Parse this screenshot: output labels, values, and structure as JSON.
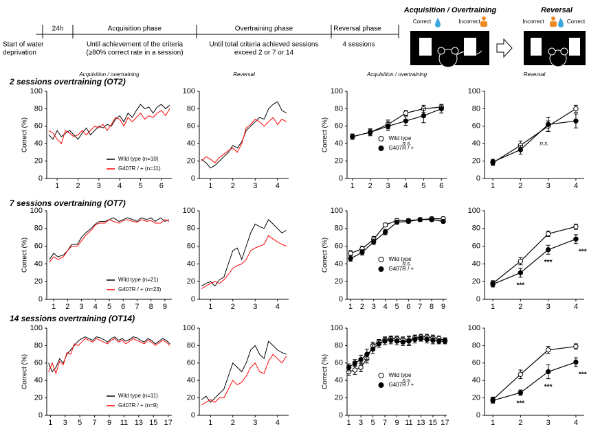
{
  "timeline": {
    "phases": [
      "24h",
      "Acquisition phase",
      "Overtraining phase",
      "Reversal phase"
    ],
    "notes": [
      [
        "Start of water",
        "deprivation"
      ],
      [
        "Until achievement of the criteria",
        "(≥80% correct rate in a session)"
      ],
      [
        "Until total criteria achieved sessions",
        "exceed 2 or 7 or 14"
      ],
      [
        "4 sessions"
      ]
    ]
  },
  "schematic": {
    "acquisition": {
      "title": "Acquisition / Overtraining",
      "correct": "Correct",
      "incorrect": "Incorrect"
    },
    "reversal": {
      "title": "Reversal",
      "incorrect": "Incorrect",
      "correct": "Correct"
    }
  },
  "row_titles": [
    "2 sessions overtraining (OT2)",
    "7 sessions overtraining (OT7)",
    "14 sessions overtraining (OT14)"
  ],
  "chart_data": [
    {
      "type": "line",
      "title": "Acquisition / overtraining",
      "ylabel": "Correct (%)",
      "legend": "lower right",
      "x": [
        0.6,
        0.8,
        1,
        1.2,
        1.4,
        1.6,
        1.8,
        2,
        2.2,
        2.4,
        2.6,
        2.8,
        3,
        3.2,
        3.4,
        3.6,
        3.8,
        4,
        4.2,
        4.4,
        4.6,
        4.8,
        5,
        5.2,
        5.4,
        5.6,
        5.8,
        6,
        6.2,
        6.4
      ],
      "xlim": [
        0.5,
        6.5
      ],
      "xticks": [
        1,
        2,
        3,
        4,
        5,
        6
      ],
      "ylim": [
        0,
        100
      ],
      "yticks": [
        0,
        20,
        40,
        60,
        80,
        100
      ],
      "series": [
        {
          "name": "Wild type (n=10)",
          "color": "#000000",
          "values": [
            50,
            45,
            55,
            48,
            52,
            55,
            50,
            45,
            52,
            58,
            50,
            55,
            60,
            58,
            62,
            60,
            68,
            72,
            65,
            75,
            70,
            78,
            85,
            80,
            82,
            75,
            82,
            85,
            80,
            84
          ]
        },
        {
          "name": "G407R / + (n=11)",
          "color": "#ff0000",
          "values": [
            55,
            52,
            45,
            40,
            55,
            52,
            48,
            50,
            55,
            50,
            55,
            60,
            58,
            62,
            55,
            62,
            70,
            68,
            60,
            70,
            65,
            70,
            75,
            68,
            72,
            70,
            75,
            78,
            72,
            80
          ]
        }
      ]
    },
    {
      "type": "line",
      "title": "Reversal",
      "x": [
        0.6,
        0.8,
        1,
        1.2,
        1.4,
        1.6,
        1.8,
        2,
        2.2,
        2.4,
        2.6,
        2.8,
        3,
        3.2,
        3.4,
        3.6,
        3.8,
        4,
        4.2,
        4.4
      ],
      "xlim": [
        0.5,
        4.5
      ],
      "xticks": [
        1,
        2,
        3,
        4
      ],
      "ylim": [
        0,
        100
      ],
      "yticks": [
        0,
        20,
        40,
        60,
        80,
        100
      ],
      "series": [
        {
          "color": "#000000",
          "values": [
            22,
            18,
            12,
            15,
            20,
            25,
            30,
            38,
            35,
            42,
            55,
            60,
            65,
            70,
            68,
            80,
            85,
            88,
            78,
            75
          ]
        },
        {
          "color": "#ff0000",
          "values": [
            20,
            25,
            22,
            18,
            24,
            28,
            32,
            35,
            30,
            40,
            58,
            62,
            68,
            65,
            60,
            65,
            70,
            62,
            68,
            65
          ]
        }
      ]
    },
    {
      "type": "line",
      "title": "Acquisition / overtraining",
      "ylabel": "Correct (%)",
      "legend": "lower center",
      "annotations": [
        "n.s."
      ],
      "x": [
        1,
        2,
        3,
        4,
        5,
        6
      ],
      "xlim": [
        0.7,
        6.3
      ],
      "xticks": [
        1,
        2,
        3,
        4,
        5,
        6
      ],
      "ylim": [
        0,
        100
      ],
      "yticks": [
        0,
        20,
        40,
        60,
        80,
        100
      ],
      "series": [
        {
          "name": "Wild type",
          "color": "#000000",
          "marker": "open",
          "values": [
            48,
            53,
            62,
            75,
            80,
            82
          ],
          "errors": [
            3,
            3,
            5,
            3,
            4,
            3
          ]
        },
        {
          "name": "G407R / +",
          "color": "#000000",
          "marker": "filled",
          "values": [
            48,
            53,
            60,
            66,
            72,
            80
          ],
          "errors": [
            3,
            4,
            5,
            5,
            8,
            5
          ]
        }
      ]
    },
    {
      "type": "line",
      "title": "Reversal",
      "annotations": [
        "n.s."
      ],
      "x": [
        1,
        2,
        3,
        4
      ],
      "xlim": [
        0.7,
        4.3
      ],
      "xticks": [
        1,
        2,
        3,
        4
      ],
      "ylim": [
        0,
        100
      ],
      "yticks": [
        0,
        20,
        40,
        60,
        80,
        100
      ],
      "series": [
        {
          "color": "#000000",
          "marker": "open",
          "values": [
            18,
            38,
            60,
            80
          ],
          "errors": [
            3,
            5,
            6,
            4
          ]
        },
        {
          "color": "#000000",
          "marker": "filled",
          "values": [
            19,
            33,
            62,
            66
          ],
          "errors": [
            3,
            5,
            8,
            8
          ]
        }
      ]
    },
    {
      "type": "line",
      "ylabel": "Correct (%)",
      "legend": "lower right",
      "x": [
        0.7,
        1,
        1.3,
        1.7,
        2,
        2.3,
        2.7,
        3,
        3.3,
        3.7,
        4,
        4.3,
        4.7,
        5,
        5.3,
        5.7,
        6,
        6.3,
        6.7,
        7,
        7.3,
        7.7,
        8,
        8.3,
        8.7,
        9,
        9.3
      ],
      "xlim": [
        0.5,
        9.5
      ],
      "xticks": [
        1,
        2,
        3,
        4,
        5,
        6,
        7,
        8,
        9
      ],
      "ylim": [
        0,
        100
      ],
      "yticks": [
        0,
        20,
        40,
        60,
        80,
        100
      ],
      "series": [
        {
          "name": "Wild type (n=21)",
          "color": "#000000",
          "values": [
            45,
            52,
            48,
            50,
            55,
            62,
            62,
            70,
            75,
            80,
            85,
            88,
            88,
            90,
            92,
            88,
            90,
            92,
            90,
            88,
            92,
            90,
            92,
            88,
            92,
            88,
            90
          ]
        },
        {
          "name": "G407R / + (n=23)",
          "color": "#ff0000",
          "values": [
            42,
            48,
            45,
            48,
            55,
            60,
            60,
            66,
            72,
            78,
            84,
            86,
            86,
            90,
            88,
            86,
            89,
            90,
            88,
            87,
            90,
            88,
            89,
            86,
            86,
            90,
            88
          ]
        }
      ]
    },
    {
      "type": "line",
      "x": [
        0.6,
        0.8,
        1,
        1.2,
        1.4,
        1.6,
        1.8,
        2,
        2.2,
        2.4,
        2.6,
        2.8,
        3,
        3.2,
        3.4,
        3.6,
        3.8,
        4,
        4.2,
        4.4
      ],
      "xlim": [
        0.5,
        4.5
      ],
      "xticks": [
        1,
        2,
        3,
        4
      ],
      "ylim": [
        0,
        100
      ],
      "yticks": [
        0,
        20,
        40,
        60,
        80,
        100
      ],
      "series": [
        {
          "color": "#000000",
          "values": [
            15,
            18,
            20,
            15,
            22,
            25,
            40,
            55,
            58,
            45,
            60,
            75,
            85,
            82,
            80,
            90,
            85,
            80,
            75,
            78
          ]
        },
        {
          "color": "#ff0000",
          "values": [
            12,
            15,
            18,
            20,
            18,
            22,
            28,
            35,
            38,
            40,
            45,
            55,
            58,
            60,
            62,
            72,
            68,
            65,
            62,
            60
          ]
        }
      ]
    },
    {
      "type": "line",
      "ylabel": "Correct (%)",
      "legend": "lower center",
      "annotations": [
        "n.s."
      ],
      "x": [
        1,
        2,
        3,
        4,
        5,
        6,
        7,
        8,
        9
      ],
      "xlim": [
        0.7,
        9.3
      ],
      "xticks": [
        1,
        2,
        3,
        4,
        5,
        6,
        7,
        8,
        9
      ],
      "ylim": [
        0,
        100
      ],
      "yticks": [
        0,
        20,
        40,
        60,
        80,
        100
      ],
      "series": [
        {
          "name": "Wild type",
          "color": "#000000",
          "marker": "open",
          "values": [
            52,
            57,
            68,
            84,
            89,
            89,
            90,
            91,
            91
          ],
          "errors": [
            3,
            3,
            3,
            2,
            2,
            2,
            2,
            2,
            2
          ]
        },
        {
          "name": "G407R / +",
          "color": "#000000",
          "marker": "filled",
          "values": [
            46,
            53,
            65,
            76,
            87,
            88,
            90,
            90,
            88
          ],
          "errors": [
            3,
            3,
            3,
            3,
            2,
            2,
            2,
            2,
            2
          ]
        }
      ]
    },
    {
      "type": "line",
      "significance": [
        null,
        "***",
        "***",
        "***"
      ],
      "x": [
        1,
        2,
        3,
        4
      ],
      "xlim": [
        0.7,
        4.3
      ],
      "xticks": [
        1,
        2,
        3,
        4
      ],
      "ylim": [
        0,
        100
      ],
      "yticks": [
        0,
        20,
        40,
        60,
        80,
        100
      ],
      "series": [
        {
          "color": "#000000",
          "marker": "open",
          "values": [
            18,
            43,
            74,
            82
          ],
          "errors": [
            3,
            4,
            3,
            3
          ]
        },
        {
          "color": "#000000",
          "marker": "filled",
          "values": [
            17,
            30,
            56,
            68
          ],
          "errors": [
            3,
            5,
            5,
            5
          ]
        }
      ]
    },
    {
      "type": "line",
      "ylabel": "Correct (%)",
      "legend": "lower right",
      "x": [
        0.75,
        1.25,
        1.75,
        2.25,
        2.75,
        3.25,
        3.75,
        4.25,
        4.75,
        5.25,
        5.75,
        6.25,
        6.75,
        7.25,
        7.75,
        8.25,
        8.75,
        9.25,
        9.75,
        10.25,
        10.75,
        11.25,
        11.75,
        12.25,
        12.75,
        13.25,
        13.75,
        14.25,
        14.75,
        15.25,
        15.75,
        16.25,
        16.75,
        17.25
      ],
      "xlim": [
        0.5,
        17.5
      ],
      "xticks": [
        1,
        3,
        5,
        7,
        9,
        11,
        13,
        15,
        17
      ],
      "ylim": [
        0,
        100
      ],
      "yticks": [
        0,
        20,
        40,
        60,
        80,
        100
      ],
      "series": [
        {
          "name": "Wild type (n=11)",
          "color": "#000000",
          "values": [
            60,
            50,
            55,
            65,
            60,
            70,
            75,
            80,
            85,
            88,
            90,
            88,
            86,
            90,
            89,
            87,
            84,
            88,
            90,
            86,
            88,
            85,
            87,
            90,
            89,
            86,
            84,
            88,
            86,
            82,
            85,
            88,
            86,
            82
          ]
        },
        {
          "name": "G407R / + (n=9)",
          "color": "#ff0000",
          "values": [
            50,
            60,
            48,
            62,
            58,
            72,
            70,
            82,
            80,
            84,
            88,
            86,
            84,
            88,
            86,
            84,
            82,
            86,
            88,
            84,
            86,
            82,
            85,
            88,
            86,
            84,
            82,
            86,
            84,
            80,
            83,
            86,
            84,
            80
          ]
        }
      ]
    },
    {
      "type": "line",
      "x": [
        0.6,
        0.8,
        1,
        1.2,
        1.4,
        1.6,
        1.8,
        2,
        2.2,
        2.4,
        2.6,
        2.8,
        3,
        3.2,
        3.4,
        3.6,
        3.8,
        4,
        4.2,
        4.4
      ],
      "xlim": [
        0.5,
        4.5
      ],
      "xticks": [
        1,
        2,
        3,
        4
      ],
      "ylim": [
        0,
        100
      ],
      "yticks": [
        0,
        20,
        40,
        60,
        80,
        100
      ],
      "series": [
        {
          "color": "#000000",
          "values": [
            18,
            22,
            15,
            20,
            25,
            30,
            45,
            60,
            55,
            50,
            60,
            75,
            80,
            70,
            65,
            85,
            80,
            75,
            72,
            70
          ]
        },
        {
          "color": "#ff0000",
          "values": [
            12,
            15,
            18,
            15,
            20,
            20,
            30,
            40,
            35,
            38,
            45,
            55,
            60,
            50,
            48,
            62,
            70,
            65,
            60,
            68
          ]
        }
      ]
    },
    {
      "type": "line",
      "ylabel": "Correct (%)",
      "legend": "lower center",
      "annotations": [
        "n.s."
      ],
      "x": [
        1,
        2,
        3,
        4,
        5,
        6,
        7,
        8,
        9,
        10,
        11,
        12,
        13,
        14,
        15,
        16,
        17
      ],
      "xlim": [
        0.7,
        17.3
      ],
      "xticks": [
        1,
        3,
        5,
        7,
        9,
        11,
        13,
        15,
        17
      ],
      "ylim": [
        0,
        100
      ],
      "yticks": [
        0,
        20,
        40,
        60,
        80,
        100
      ],
      "series": [
        {
          "name": "Wild type",
          "color": "#000000",
          "marker": "open",
          "values": [
            50,
            52,
            55,
            65,
            80,
            84,
            87,
            88,
            88,
            87,
            86,
            89,
            90,
            90,
            89,
            88,
            86
          ],
          "errors": [
            4,
            5,
            5,
            5,
            4,
            3,
            3,
            3,
            3,
            3,
            5,
            3,
            3,
            3,
            3,
            3,
            3
          ]
        },
        {
          "name": "G407R / +",
          "color": "#000000",
          "marker": "filled",
          "values": [
            55,
            60,
            64,
            70,
            76,
            82,
            85,
            86,
            85,
            84,
            85,
            87,
            88,
            87,
            86,
            85,
            85
          ],
          "errors": [
            4,
            4,
            5,
            6,
            5,
            4,
            4,
            4,
            4,
            4,
            5,
            4,
            3,
            4,
            4,
            3,
            3
          ]
        }
      ]
    },
    {
      "type": "line",
      "significance": [
        null,
        "***",
        "***",
        "***"
      ],
      "x": [
        1,
        2,
        3,
        4
      ],
      "xlim": [
        0.7,
        4.3
      ],
      "xticks": [
        1,
        2,
        3,
        4
      ],
      "ylim": [
        0,
        100
      ],
      "yticks": [
        0,
        20,
        40,
        60,
        80,
        100
      ],
      "series": [
        {
          "color": "#000000",
          "marker": "open",
          "values": [
            18,
            47,
            75,
            79
          ],
          "errors": [
            3,
            5,
            4,
            3
          ]
        },
        {
          "color": "#000000",
          "marker": "filled",
          "values": [
            17,
            26,
            50,
            61
          ],
          "errors": [
            3,
            3,
            8,
            5
          ]
        }
      ]
    }
  ]
}
